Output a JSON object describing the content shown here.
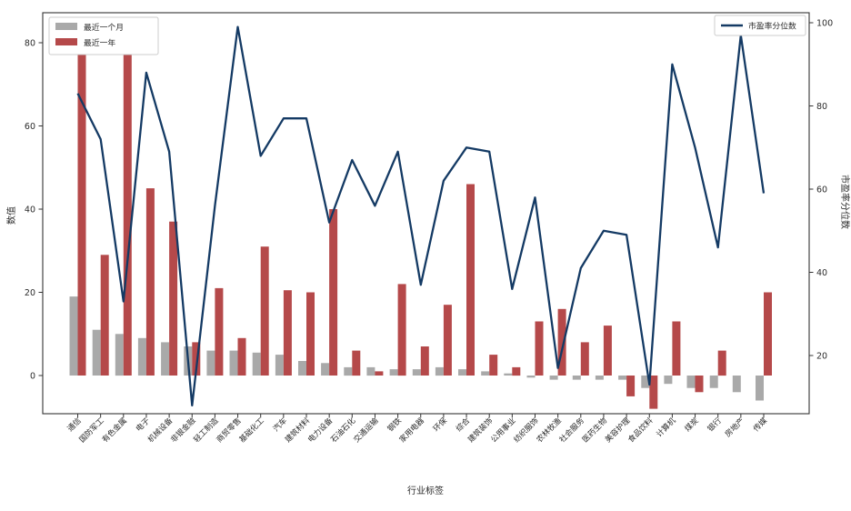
{
  "figure": {
    "background": "#ffffff",
    "border_color": "#333333"
  },
  "chart_data": {
    "type": "bar+line",
    "x_label": "行业标签",
    "categories": [
      "通信",
      "国防军工",
      "有色金属",
      "电子",
      "机械设备",
      "非银金融",
      "轻工制造",
      "商贸零售",
      "基础化工",
      "汽车",
      "建筑材料",
      "电力设备",
      "石油石化",
      "交通运输",
      "钢铁",
      "家用电器",
      "环保",
      "综合",
      "建筑装饰",
      "公用事业",
      "纺织服饰",
      "农林牧渔",
      "社会服务",
      "医药生物",
      "美容护理",
      "食品饮料",
      "计算机",
      "煤炭",
      "银行",
      "房地产",
      "传媒"
    ],
    "series": [
      {
        "name": "最近一个月",
        "type": "bar",
        "axis": "left",
        "color": "#a9a9a9",
        "values": [
          19,
          11,
          10,
          9,
          8,
          7,
          6,
          6,
          5.5,
          5,
          3.5,
          3,
          2,
          2,
          1.5,
          1.5,
          2,
          1.5,
          1,
          0.5,
          -0.5,
          -1,
          -1,
          -1,
          -1,
          -3,
          -2,
          -3,
          -3,
          -4,
          -6
        ]
      },
      {
        "name": "最近一年",
        "type": "bar",
        "axis": "left",
        "color": "#b5494a",
        "values": [
          85,
          29,
          82,
          45,
          37,
          8,
          21,
          9,
          31,
          20.5,
          20,
          40,
          6,
          1,
          22,
          7,
          17,
          46,
          5,
          2,
          13,
          16,
          8,
          12,
          -5,
          -8,
          13,
          -4,
          6,
          0,
          20
        ]
      },
      {
        "name": "市盈率分位数",
        "type": "line",
        "axis": "right",
        "color": "#143a64",
        "values": [
          83,
          72,
          33,
          88,
          69,
          8,
          56,
          99,
          68,
          77,
          77,
          52,
          67,
          56,
          69,
          37,
          62,
          70,
          69,
          36,
          58,
          17,
          41,
          50,
          49,
          13,
          90,
          70,
          46,
          97,
          59
        ]
      }
    ],
    "left_axis": {
      "label": "数值",
      "ticks": [
        0,
        20,
        40,
        60,
        80
      ],
      "range": [
        -9.2,
        87
      ]
    },
    "right_axis": {
      "label": "市盈率分位数",
      "ticks": [
        20,
        40,
        60,
        80,
        100
      ],
      "range": [
        6,
        102.4
      ]
    },
    "legend_position": {
      "bars": "top-left",
      "line": "top-right"
    },
    "grid": false
  }
}
